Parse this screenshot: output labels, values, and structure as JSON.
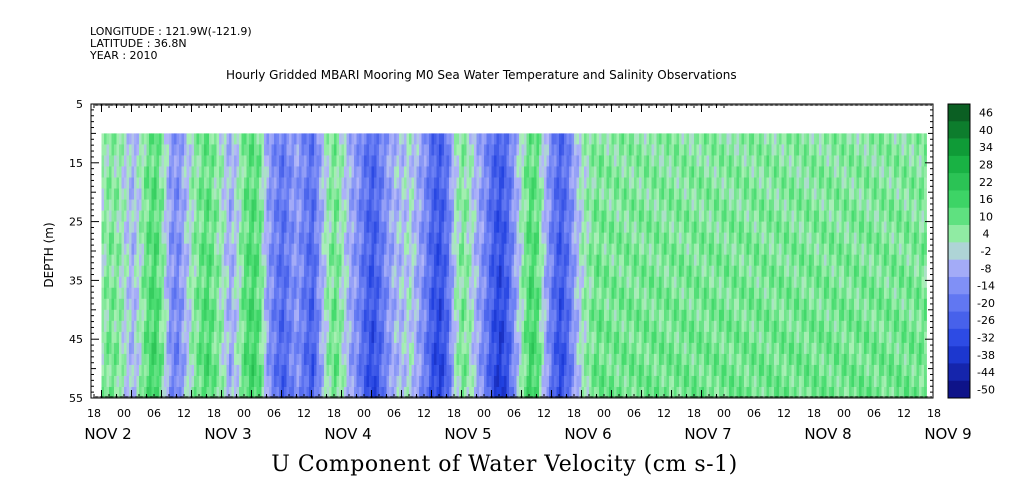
{
  "header": {
    "longitude": "LONGITUDE : 121.9W(-121.9)",
    "latitude": "LATITUDE : 36.8N",
    "year": "YEAR : 2010"
  },
  "chart_data": {
    "type": "heatmap",
    "title": "Hourly Gridded MBARI Mooring M0 Sea Water Temperature and Salinity Observations",
    "xlabel": "U Component of Water Velocity (cm s-1)",
    "ylabel": "DEPTH (m)",
    "ylim": [
      55,
      5
    ],
    "y_ticks": [
      "5",
      "15",
      "25",
      "35",
      "45",
      "55"
    ],
    "data_depth_range": [
      10,
      55
    ],
    "x_hour_ticks": [
      "18",
      "00",
      "06",
      "12",
      "18",
      "00",
      "06",
      "12",
      "18",
      "00",
      "06",
      "12",
      "18",
      "00",
      "06",
      "12",
      "18",
      "00",
      "06",
      "12",
      "18",
      "00",
      "06",
      "12",
      "18",
      "00",
      "06",
      "12",
      "18",
      "00",
      "06",
      "12",
      "18",
      "00",
      "06",
      "12",
      "18",
      "00",
      "06",
      "12",
      "18",
      "00",
      "06",
      "12",
      "18",
      "00",
      "06",
      "12",
      "18",
      "00",
      "06",
      "12",
      "18",
      "00",
      "06",
      "12",
      "18",
      "00",
      "06",
      "12",
      "18",
      "00",
      "06",
      "12",
      "18",
      "00",
      "06",
      "12",
      "18",
      "00",
      "06",
      "12",
      "18",
      "00",
      "06",
      "12",
      "18",
      "00",
      "06",
      "12",
      "18",
      "00",
      "06",
      "12",
      "18"
    ],
    "x_day_labels": [
      "NOV 2",
      "NOV 3",
      "NOV 4",
      "NOV 5",
      "NOV 6",
      "NOV 7",
      "NOV 8",
      "NOV 9"
    ],
    "colorbar": {
      "labels": [
        "46",
        "40",
        "34",
        "28",
        "22",
        "16",
        "10",
        "4",
        "-2",
        "-8",
        "-14",
        "-20",
        "-26",
        "-32",
        "-38",
        "-44",
        "-50"
      ],
      "range": [
        -50,
        52
      ]
    },
    "time_profile": {
      "note": "approximate depth-mean U velocity (cm/s) per 6-hour step starting NOV 2 00",
      "values": [
        6,
        10,
        8,
        2,
        -4,
        4,
        14,
        18,
        8,
        -10,
        -14,
        -4,
        6,
        12,
        16,
        10,
        4,
        -6,
        2,
        14,
        18,
        12,
        -8,
        -16,
        -22,
        -14,
        -10,
        -18,
        -24,
        -8,
        6,
        12,
        4,
        -6,
        -12,
        -22,
        -28,
        -20,
        -10,
        -4,
        -2,
        2,
        -6,
        -14,
        -26,
        -30,
        -20,
        2,
        10,
        4,
        -6,
        -14,
        -26,
        -32,
        -24,
        -8,
        6,
        18,
        14,
        -4,
        -18,
        -28,
        -20,
        -6,
        4,
        8,
        12,
        10
      ],
      "units": "cm s-1"
    },
    "colors": {
      "positive_strong": "#10c23a",
      "positive_light": "#a8f0b4",
      "near_zero": "#b4b8f8",
      "negative_strong": "#2040e0"
    }
  }
}
